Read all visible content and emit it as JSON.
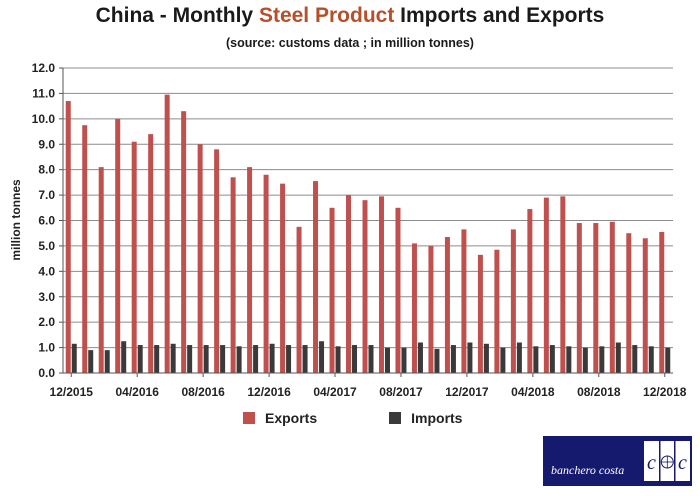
{
  "title": {
    "prefix": "China - Monthly ",
    "highlight": "Steel Product",
    "suffix": " Imports and Exports"
  },
  "subtitle": "(source: customs data ; in million tonnes)",
  "logo_text": "banchero costa",
  "colors": {
    "exports": "#c0504d",
    "imports": "#3a3a3a",
    "title_highlight": "#b5502a",
    "logo_bg": "#161a6e"
  },
  "chart_data": {
    "type": "bar",
    "title": "China - Monthly Steel Product Imports and Exports",
    "subtitle": "(source: customs data ; in million tonnes)",
    "ylabel": "million tonnes",
    "xlabel": "",
    "ylim": [
      0,
      12
    ],
    "yticks": [
      "0.0",
      "1.0",
      "2.0",
      "3.0",
      "4.0",
      "5.0",
      "6.0",
      "7.0",
      "8.0",
      "9.0",
      "10.0",
      "11.0",
      "12.0"
    ],
    "grid": true,
    "legend": "bottom",
    "xtick_labels": [
      {
        "index": 0,
        "label": "12/2015"
      },
      {
        "index": 4,
        "label": "04/2016"
      },
      {
        "index": 8,
        "label": "08/2016"
      },
      {
        "index": 12,
        "label": "12/2016"
      },
      {
        "index": 16,
        "label": "04/2017"
      },
      {
        "index": 20,
        "label": "08/2017"
      },
      {
        "index": 24,
        "label": "12/2017"
      },
      {
        "index": 28,
        "label": "04/2018"
      },
      {
        "index": 32,
        "label": "08/2018"
      },
      {
        "index": 36,
        "label": "12/2018"
      }
    ],
    "categories": [
      "12/2015",
      "01/2016",
      "02/2016",
      "03/2016",
      "04/2016",
      "05/2016",
      "06/2016",
      "07/2016",
      "08/2016",
      "09/2016",
      "10/2016",
      "11/2016",
      "12/2016",
      "01/2017",
      "02/2017",
      "03/2017",
      "04/2017",
      "05/2017",
      "06/2017",
      "07/2017",
      "08/2017",
      "09/2017",
      "10/2017",
      "11/2017",
      "12/2017",
      "01/2018",
      "02/2018",
      "03/2018",
      "04/2018",
      "05/2018",
      "06/2018",
      "07/2018",
      "08/2018",
      "09/2018",
      "10/2018",
      "11/2018",
      "12/2018"
    ],
    "series": [
      {
        "name": "Exports",
        "color": "#c0504d",
        "values": [
          10.7,
          9.75,
          8.1,
          10.0,
          9.1,
          9.4,
          10.95,
          10.3,
          9.0,
          8.8,
          7.7,
          8.1,
          7.8,
          7.45,
          5.75,
          7.55,
          6.5,
          7.0,
          6.8,
          6.95,
          6.5,
          5.1,
          5.0,
          5.35,
          5.65,
          4.65,
          4.85,
          5.65,
          6.45,
          6.9,
          6.95,
          5.9,
          5.9,
          5.95,
          5.5,
          5.3,
          5.55
        ]
      },
      {
        "name": "Imports",
        "color": "#3a3a3a",
        "values": [
          1.15,
          0.9,
          0.9,
          1.25,
          1.1,
          1.1,
          1.15,
          1.1,
          1.1,
          1.1,
          1.05,
          1.1,
          1.15,
          1.1,
          1.1,
          1.25,
          1.05,
          1.1,
          1.1,
          1.0,
          1.0,
          1.2,
          0.95,
          1.1,
          1.2,
          1.15,
          1.0,
          1.2,
          1.05,
          1.1,
          1.05,
          1.0,
          1.05,
          1.2,
          1.1,
          1.05,
          1.0
        ]
      }
    ]
  }
}
